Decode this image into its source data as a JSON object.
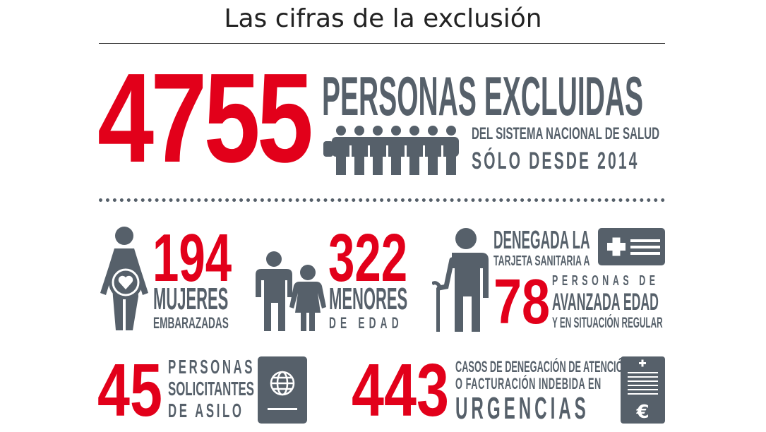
{
  "title": "Las cifras de la exclusión",
  "hero": {
    "number": "4755",
    "headline": "PERSONAS EXCLUIDAS",
    "line1": "DEL SISTEMA NACIONAL DE SALUD",
    "line2": "SÓLO DESDE 2014",
    "icon": "people-crowd-icon"
  },
  "stats": {
    "pregnant": {
      "number": "194",
      "label1": "MUJERES",
      "label2": "EMBARAZADAS",
      "icon": "pregnant-woman-icon"
    },
    "minors": {
      "number": "322",
      "label1": "MENORES",
      "label2": "DE EDAD",
      "icon": "adult-child-icon"
    },
    "elderly": {
      "header1": "DENEGADA LA",
      "header2": "TARJETA SANITARIA A",
      "number": "78",
      "label1": "PERSONAS DE",
      "label2": "AVANZADA EDAD",
      "label3": "Y EN SITUACIÓN REGULAR",
      "icon": "elderly-person-icon",
      "card_icon": "health-card-icon"
    },
    "asylum": {
      "number": "45",
      "label1": "PERSONAS",
      "label2": "SOLICITANTES",
      "label3": "DE ASILO",
      "icon": "passport-icon"
    },
    "emergency": {
      "number": "443",
      "label1": "CASOS DE DENEGACIÓN DE ATENCIÓN",
      "label2": "O FACTURACIÓN INDEBIDA EN",
      "label3": "URGENCIAS",
      "icon": "medical-invoice-icon",
      "currency_symbol": "€"
    }
  },
  "colors": {
    "accent": "#e2001a",
    "gray": "#56606a"
  }
}
